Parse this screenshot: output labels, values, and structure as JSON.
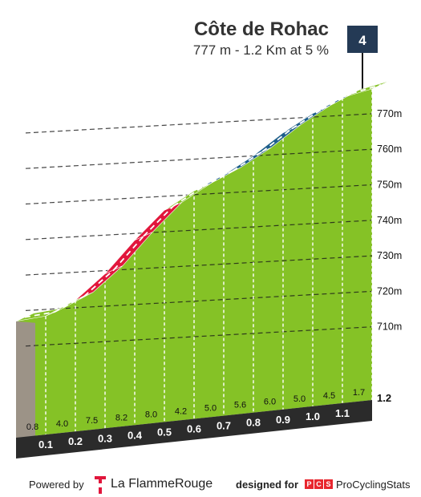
{
  "chart_data": {
    "type": "area",
    "title": "Côte de Rohac",
    "subtitle": "777 m - 1.2 Km at 5 %",
    "category_badge": "4",
    "y_ticks": [
      710,
      720,
      730,
      740,
      750,
      760,
      770
    ],
    "y_tick_labels": [
      "710m",
      "720m",
      "730m",
      "740m",
      "750m",
      "760m",
      "770m"
    ],
    "distance_km": [
      0,
      0.1,
      0.2,
      0.3,
      0.4,
      0.5,
      0.6,
      0.7,
      0.8,
      0.9,
      1.0,
      1.1,
      1.2
    ],
    "altitude_m": [
      717,
      718,
      722,
      729,
      738,
      746,
      751,
      755,
      760,
      766,
      771,
      775,
      777
    ],
    "segment_gradients": [
      "0.8",
      "4.0",
      "7.5",
      "8.2",
      "8.0",
      "4.2",
      "5.0",
      "5.6",
      "6.0",
      "5.0",
      "4.5",
      "1.7"
    ],
    "km_labels": [
      "0.1",
      "0.2",
      "0.3",
      "0.4",
      "0.5",
      "0.6",
      "0.7",
      "0.8",
      "0.9",
      "1.0",
      "1.1"
    ],
    "end_km_label": "1.2",
    "gradient_colors": {
      "easy": "#85c226",
      "moderate": "#1f5f8b",
      "steep": "#e1163c"
    }
  },
  "footer": {
    "powered_by": "Powered by",
    "la_flamme_rouge": "La FlammeRouge",
    "designed_for": "designed for",
    "pcs_letters": [
      "P",
      "C",
      "S"
    ],
    "procyclingstats": "ProCyclingStats"
  }
}
